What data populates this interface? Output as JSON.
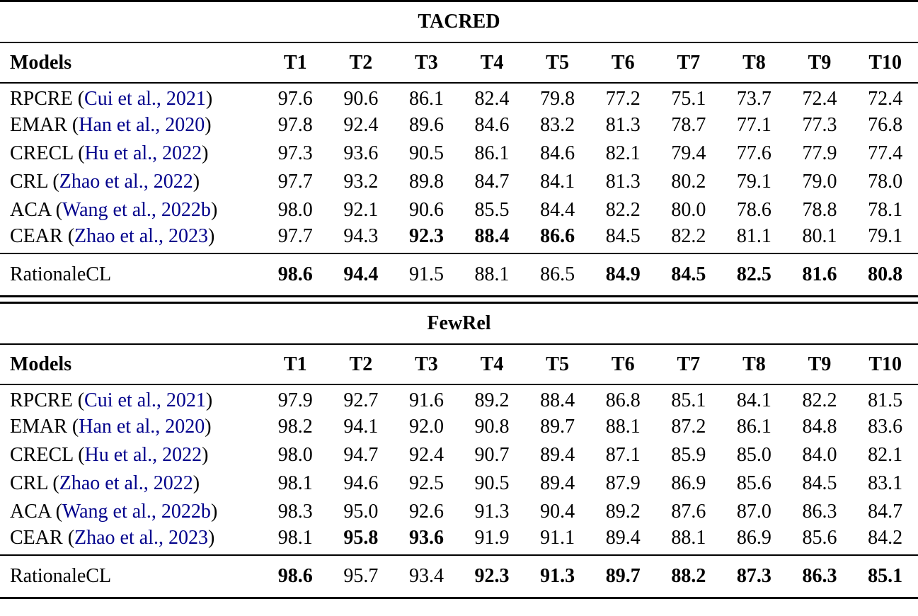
{
  "colors": {
    "text": "#000000",
    "citation_link": "#00008B",
    "rule": "#000000",
    "background": "#FFFFFF"
  },
  "tables": [
    {
      "title": "TACRED",
      "header": [
        "Models",
        "T1",
        "T2",
        "T3",
        "T4",
        "T5",
        "T6",
        "T7",
        "T8",
        "T9",
        "T10"
      ],
      "rows": [
        {
          "model": "RPCRE",
          "cite": "Cui et al., 2021",
          "values": [
            "97.6",
            "90.6",
            "86.1",
            "82.4",
            "79.8",
            "77.2",
            "75.1",
            "73.7",
            "72.4",
            "72.4"
          ],
          "bold": []
        },
        {
          "model": "EMAR",
          "cite": "Han et al., 2020",
          "values": [
            "97.8",
            "92.4",
            "89.6",
            "84.6",
            "83.2",
            "81.3",
            "78.7",
            "77.1",
            "77.3",
            "76.8"
          ],
          "bold": []
        },
        {
          "model": "CRECL",
          "cite": "Hu et al., 2022",
          "values": [
            "97.3",
            "93.6",
            "90.5",
            "86.1",
            "84.6",
            "82.1",
            "79.4",
            "77.6",
            "77.9",
            "77.4"
          ],
          "bold": []
        },
        {
          "model": "CRL",
          "cite": "Zhao et al., 2022",
          "values": [
            "97.7",
            "93.2",
            "89.8",
            "84.7",
            "84.1",
            "81.3",
            "80.2",
            "79.1",
            "79.0",
            "78.0"
          ],
          "bold": []
        },
        {
          "model": "ACA",
          "cite": "Wang et al., 2022b",
          "values": [
            "98.0",
            "92.1",
            "90.6",
            "85.5",
            "84.4",
            "82.2",
            "80.0",
            "78.6",
            "78.8",
            "78.1"
          ],
          "bold": []
        },
        {
          "model": "CEAR",
          "cite": "Zhao et al., 2023",
          "values": [
            "97.7",
            "94.3",
            "92.3",
            "88.4",
            "86.6",
            "84.5",
            "82.2",
            "81.1",
            "80.1",
            "79.1"
          ],
          "bold": [
            2,
            3,
            4
          ]
        }
      ],
      "summary_row": {
        "model": "RationaleCL",
        "values": [
          "98.6",
          "94.4",
          "91.5",
          "88.1",
          "86.5",
          "84.9",
          "84.5",
          "82.5",
          "81.6",
          "80.8"
        ],
        "bold": [
          0,
          1,
          5,
          6,
          7,
          8,
          9
        ]
      }
    },
    {
      "title": "FewRel",
      "header": [
        "Models",
        "T1",
        "T2",
        "T3",
        "T4",
        "T5",
        "T6",
        "T7",
        "T8",
        "T9",
        "T10"
      ],
      "rows": [
        {
          "model": "RPCRE",
          "cite": "Cui et al., 2021",
          "values": [
            "97.9",
            "92.7",
            "91.6",
            "89.2",
            "88.4",
            "86.8",
            "85.1",
            "84.1",
            "82.2",
            "81.5"
          ],
          "bold": []
        },
        {
          "model": "EMAR",
          "cite": "Han et al., 2020",
          "values": [
            "98.2",
            "94.1",
            "92.0",
            "90.8",
            "89.7",
            "88.1",
            "87.2",
            "86.1",
            "84.8",
            "83.6"
          ],
          "bold": []
        },
        {
          "model": "CRECL",
          "cite": "Hu et al., 2022",
          "values": [
            "98.0",
            "94.7",
            "92.4",
            "90.7",
            "89.4",
            "87.1",
            "85.9",
            "85.0",
            "84.0",
            "82.1"
          ],
          "bold": []
        },
        {
          "model": "CRL",
          "cite": "Zhao et al., 2022",
          "values": [
            "98.1",
            "94.6",
            "92.5",
            "90.5",
            "89.4",
            "87.9",
            "86.9",
            "85.6",
            "84.5",
            "83.1"
          ],
          "bold": []
        },
        {
          "model": "ACA",
          "cite": "Wang et al., 2022b",
          "values": [
            "98.3",
            "95.0",
            "92.6",
            "91.3",
            "90.4",
            "89.2",
            "87.6",
            "87.0",
            "86.3",
            "84.7"
          ],
          "bold": []
        },
        {
          "model": "CEAR",
          "cite": "Zhao et al., 2023",
          "values": [
            "98.1",
            "95.8",
            "93.6",
            "91.9",
            "91.1",
            "89.4",
            "88.1",
            "86.9",
            "85.6",
            "84.2"
          ],
          "bold": [
            1,
            2
          ]
        }
      ],
      "summary_row": {
        "model": "RationaleCL",
        "values": [
          "98.6",
          "95.7",
          "93.4",
          "92.3",
          "91.3",
          "89.7",
          "88.2",
          "87.3",
          "86.3",
          "85.1"
        ],
        "bold": [
          0,
          3,
          4,
          5,
          6,
          7,
          8,
          9
        ]
      }
    }
  ]
}
